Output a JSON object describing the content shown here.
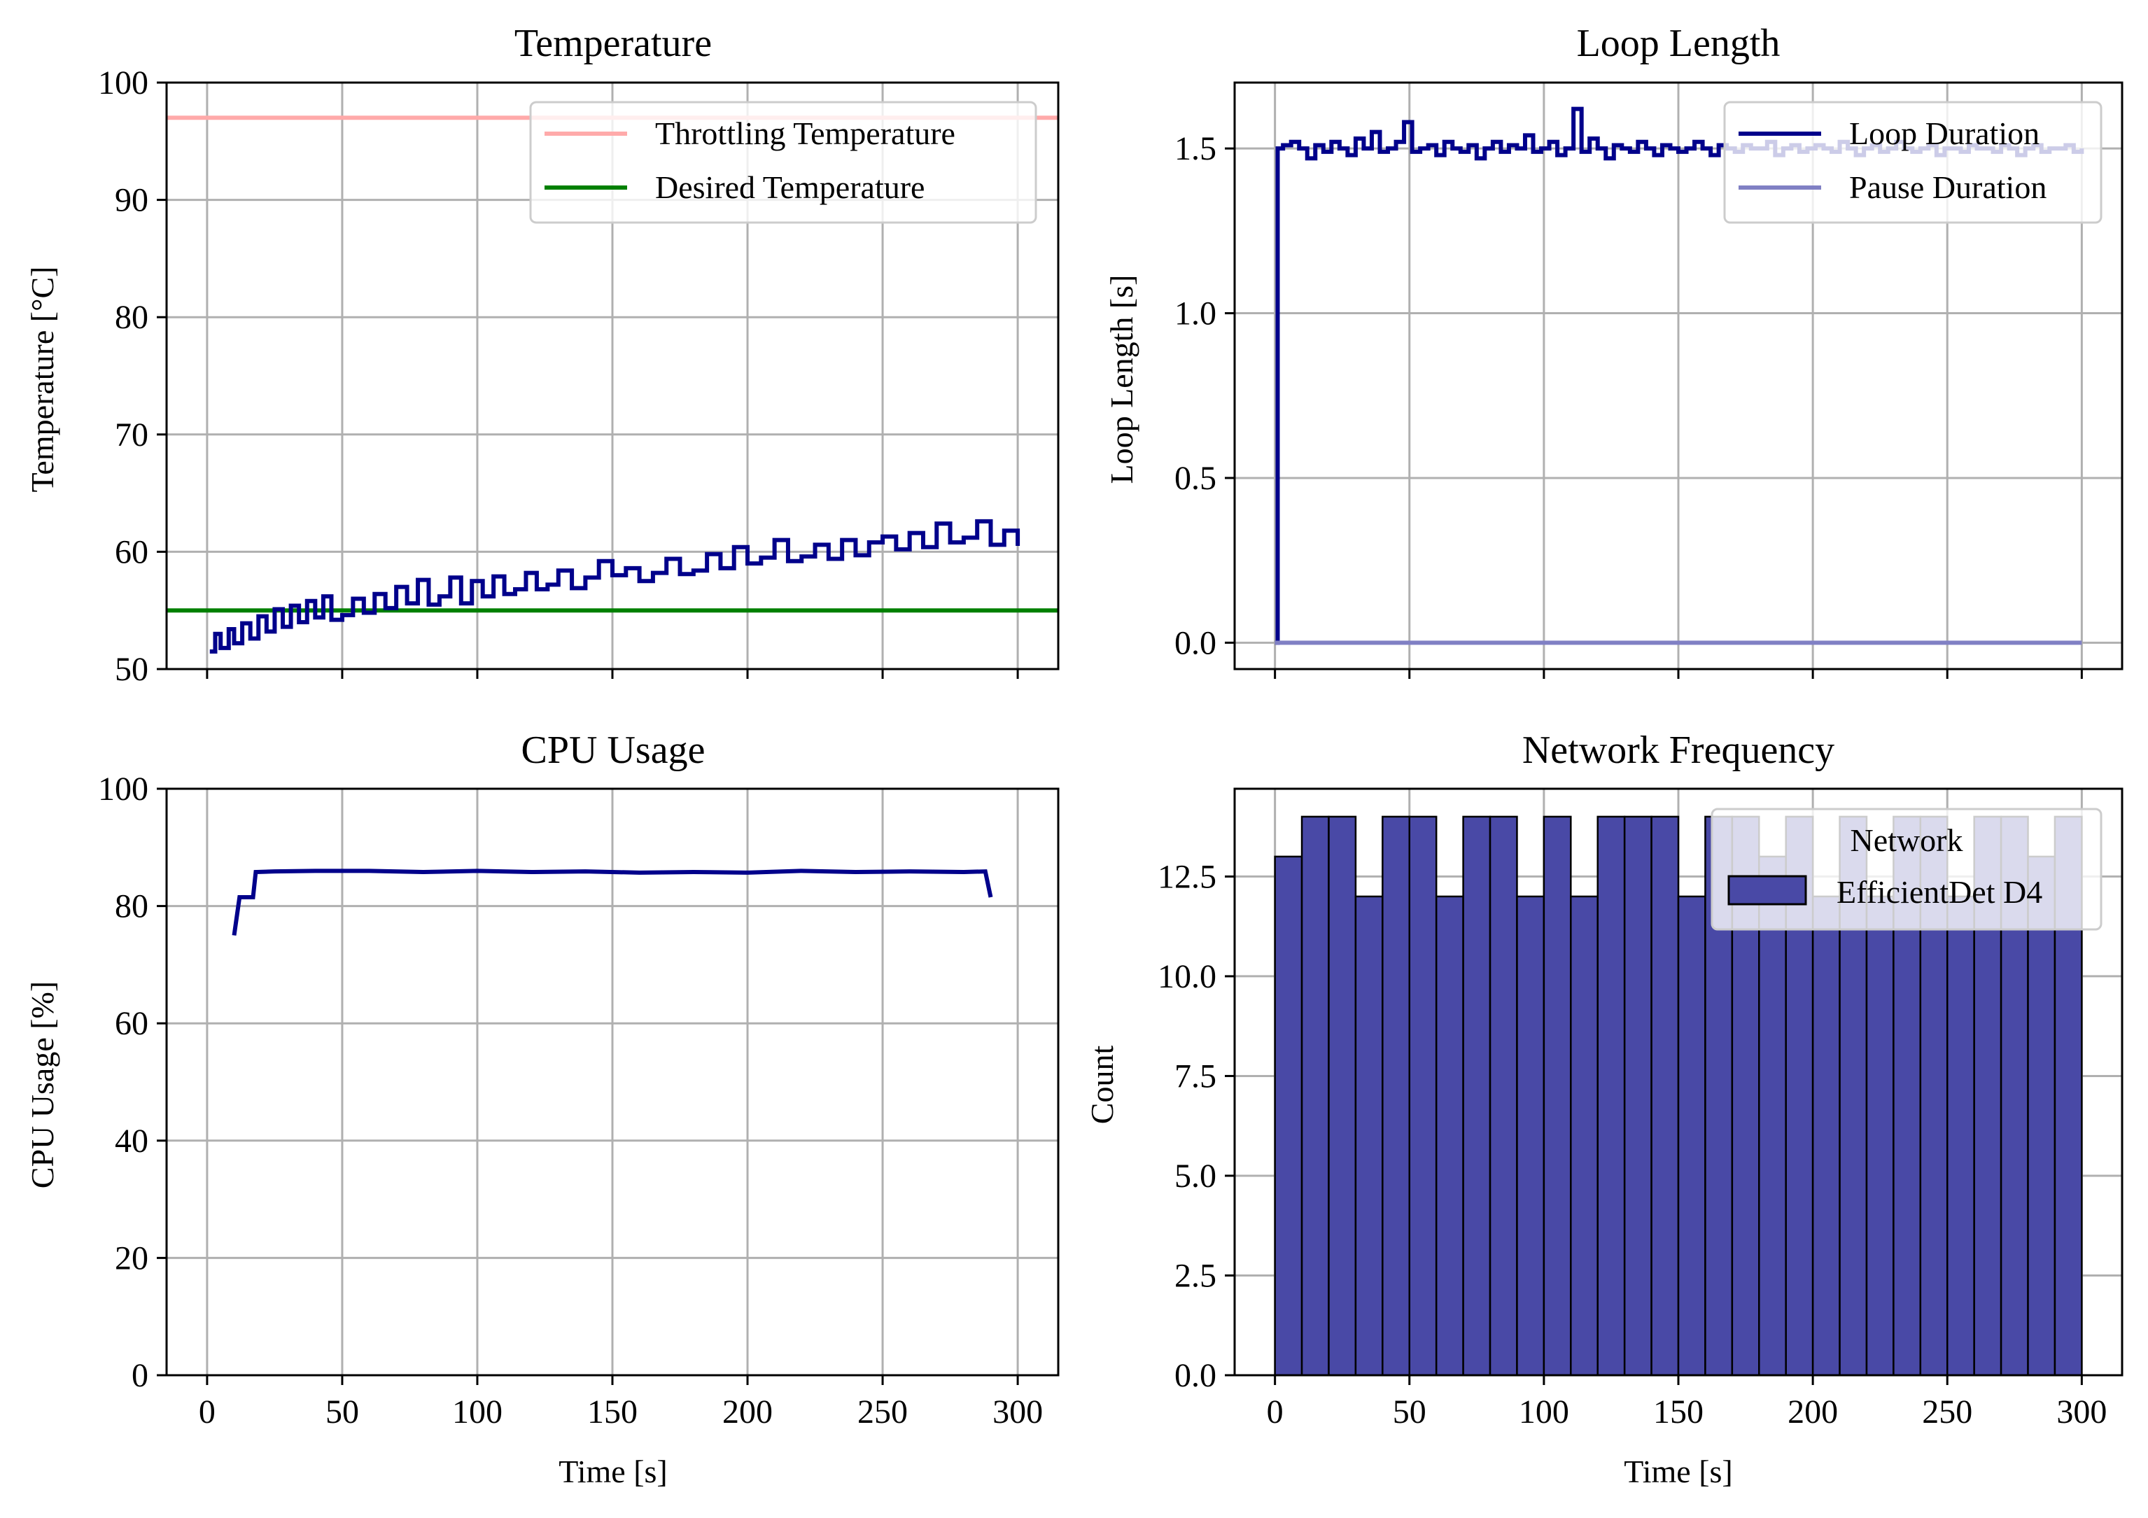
{
  "figure": {
    "colors": {
      "series": "#00008b",
      "throttle": "#ffaaaa",
      "desired": "#008000",
      "pause": "#8080c4",
      "bar": "#4949a6",
      "grid": "#b0b0b0"
    }
  },
  "chart_data": [
    {
      "id": "temperature",
      "type": "line",
      "title": "Temperature",
      "xlabel": "",
      "ylabel": "Temperature [°C]",
      "xlim": [
        -15,
        315
      ],
      "ylim": [
        50,
        100
      ],
      "xticks": [
        0,
        50,
        100,
        150,
        200,
        250,
        300
      ],
      "yticks": [
        50,
        60,
        70,
        80,
        90,
        100
      ],
      "show_xticklabels": false,
      "grid": true,
      "legend": "top-right",
      "hlines": [
        {
          "name": "Throttling Temperature",
          "y": 97,
          "color": "#ffaaaa"
        },
        {
          "name": "Desired Temperature",
          "y": 55,
          "color": "#008000"
        }
      ],
      "series": [
        {
          "color": "#00008b",
          "step": true,
          "x": [
            1,
            3,
            5,
            8,
            10,
            13,
            16,
            19,
            22,
            25,
            28,
            31,
            34,
            37,
            40,
            43,
            46,
            50,
            54,
            58,
            62,
            66,
            70,
            74,
            78,
            82,
            86,
            90,
            94,
            98,
            102,
            106,
            110,
            114,
            118,
            122,
            126,
            130,
            135,
            140,
            145,
            150,
            155,
            160,
            165,
            170,
            175,
            180,
            185,
            190,
            195,
            200,
            205,
            210,
            215,
            220,
            225,
            230,
            235,
            240,
            245,
            250,
            255,
            260,
            265,
            270,
            275,
            280,
            285,
            290,
            295,
            300
          ],
          "y": [
            51.5,
            53,
            51.8,
            53.4,
            52.2,
            53.9,
            52.6,
            54.5,
            53.2,
            55.1,
            53.6,
            55.4,
            54,
            55.8,
            54.4,
            56.2,
            54.2,
            54.6,
            56,
            54.8,
            56.4,
            55.2,
            57,
            55.6,
            57.6,
            55.5,
            56.2,
            57.8,
            55.6,
            57.5,
            56.2,
            57.9,
            56.4,
            56.8,
            58.2,
            56.8,
            57.2,
            58.4,
            56.9,
            57.8,
            59.2,
            58,
            58.6,
            57.5,
            58.2,
            59.4,
            58.1,
            58.4,
            59.8,
            58.6,
            60.4,
            59,
            59.5,
            61,
            59.2,
            59.6,
            60.6,
            59.4,
            61,
            59.7,
            60.8,
            61.3,
            60.2,
            61.6,
            60.4,
            62.4,
            60.8,
            61.2,
            62.6,
            60.6,
            61.8,
            60.5
          ]
        }
      ]
    },
    {
      "id": "loop-length",
      "type": "line",
      "title": "Loop Length",
      "xlabel": "",
      "ylabel": "Loop Length [s]",
      "xlim": [
        -15,
        315
      ],
      "ylim": [
        -0.08,
        1.7
      ],
      "xticks": [
        0,
        50,
        100,
        150,
        200,
        250,
        300
      ],
      "yticks": [
        0.0,
        0.5,
        1.0,
        1.5
      ],
      "ytick_labels": [
        "0.0",
        "0.5",
        "1.0",
        "1.5"
      ],
      "show_xticklabels": false,
      "grid": true,
      "legend": "top-right",
      "series": [
        {
          "name": "Loop Duration",
          "color": "#00008b",
          "step": true,
          "x": [
            0,
            1,
            3,
            6,
            9,
            12,
            15,
            18,
            21,
            24,
            27,
            30,
            33,
            36,
            39,
            42,
            45,
            48,
            51,
            54,
            57,
            60,
            63,
            66,
            69,
            72,
            75,
            78,
            81,
            84,
            87,
            90,
            93,
            96,
            99,
            102,
            105,
            108,
            111,
            114,
            117,
            120,
            123,
            126,
            129,
            132,
            135,
            138,
            141,
            144,
            147,
            150,
            153,
            156,
            159,
            162,
            165,
            168,
            171,
            174,
            177,
            180,
            183,
            186,
            189,
            192,
            195,
            198,
            201,
            204,
            207,
            210,
            213,
            216,
            219,
            222,
            225,
            228,
            231,
            234,
            237,
            240,
            243,
            246,
            249,
            252,
            255,
            258,
            261,
            264,
            267,
            270,
            273,
            276,
            279,
            282,
            285,
            288,
            291,
            294,
            297,
            300
          ],
          "y": [
            0,
            1.5,
            1.51,
            1.52,
            1.5,
            1.47,
            1.51,
            1.49,
            1.52,
            1.5,
            1.48,
            1.53,
            1.5,
            1.55,
            1.49,
            1.5,
            1.52,
            1.58,
            1.49,
            1.5,
            1.51,
            1.48,
            1.52,
            1.5,
            1.49,
            1.51,
            1.47,
            1.5,
            1.52,
            1.49,
            1.51,
            1.5,
            1.54,
            1.49,
            1.5,
            1.52,
            1.48,
            1.5,
            1.62,
            1.49,
            1.53,
            1.5,
            1.47,
            1.51,
            1.5,
            1.49,
            1.52,
            1.5,
            1.48,
            1.51,
            1.5,
            1.49,
            1.5,
            1.52,
            1.5,
            1.48,
            1.51,
            1.5,
            1.49,
            1.51,
            1.5,
            1.5,
            1.52,
            1.48,
            1.5,
            1.51,
            1.49,
            1.5,
            1.51,
            1.5,
            1.49,
            1.52,
            1.5,
            1.48,
            1.5,
            1.51,
            1.49,
            1.5,
            1.52,
            1.5,
            1.49,
            1.5,
            1.51,
            1.48,
            1.5,
            1.5,
            1.49,
            1.51,
            1.5,
            1.5,
            1.49,
            1.51,
            1.5,
            1.48,
            1.5,
            1.51,
            1.49,
            1.5,
            1.5,
            1.51,
            1.49,
            1.5
          ]
        },
        {
          "name": "Pause Duration",
          "color": "#8080c4",
          "step": true,
          "x": [
            0,
            300
          ],
          "y": [
            0,
            0
          ]
        }
      ]
    },
    {
      "id": "cpu-usage",
      "type": "line",
      "title": "CPU Usage",
      "xlabel": "Time [s]",
      "ylabel": "CPU Usage [%]",
      "xlim": [
        -15,
        315
      ],
      "ylim": [
        0,
        100
      ],
      "xticks": [
        0,
        50,
        100,
        150,
        200,
        250,
        300
      ],
      "yticks": [
        0,
        20,
        40,
        60,
        80,
        100
      ],
      "show_xticklabels": true,
      "grid": true,
      "series": [
        {
          "color": "#00008b",
          "step": false,
          "x": [
            10,
            12,
            15,
            17,
            18,
            25,
            40,
            60,
            80,
            100,
            120,
            140,
            160,
            180,
            200,
            220,
            240,
            260,
            280,
            288,
            290
          ],
          "y": [
            75,
            81.5,
            81.5,
            81.5,
            85.8,
            85.9,
            86,
            86,
            85.8,
            86,
            85.8,
            85.9,
            85.7,
            85.8,
            85.7,
            86,
            85.8,
            85.9,
            85.8,
            85.9,
            81.5
          ]
        }
      ]
    },
    {
      "id": "network-frequency",
      "type": "bar",
      "title": "Network Frequency",
      "xlabel": "Time [s]",
      "ylabel": "Count",
      "xlim": [
        -15,
        315
      ],
      "ylim": [
        0,
        14.7
      ],
      "xticks": [
        0,
        50,
        100,
        150,
        200,
        250,
        300
      ],
      "yticks": [
        0.0,
        2.5,
        5.0,
        7.5,
        10.0,
        12.5
      ],
      "ytick_labels": [
        "0.0",
        "2.5",
        "5.0",
        "7.5",
        "10.0",
        "12.5"
      ],
      "show_xticklabels": true,
      "grid": true,
      "legend": "top-right",
      "legend_title": "Network",
      "series": [
        {
          "name": "EfficientDet D4",
          "color": "#4949a6",
          "bin_start": 0,
          "bin_width": 10,
          "values": [
            13,
            14,
            14,
            12,
            14,
            14,
            12,
            14,
            14,
            12,
            14,
            12,
            14,
            14,
            14,
            12,
            14,
            14,
            13,
            14,
            12,
            14,
            12,
            14,
            14,
            12,
            14,
            14,
            13,
            14
          ]
        }
      ]
    }
  ]
}
